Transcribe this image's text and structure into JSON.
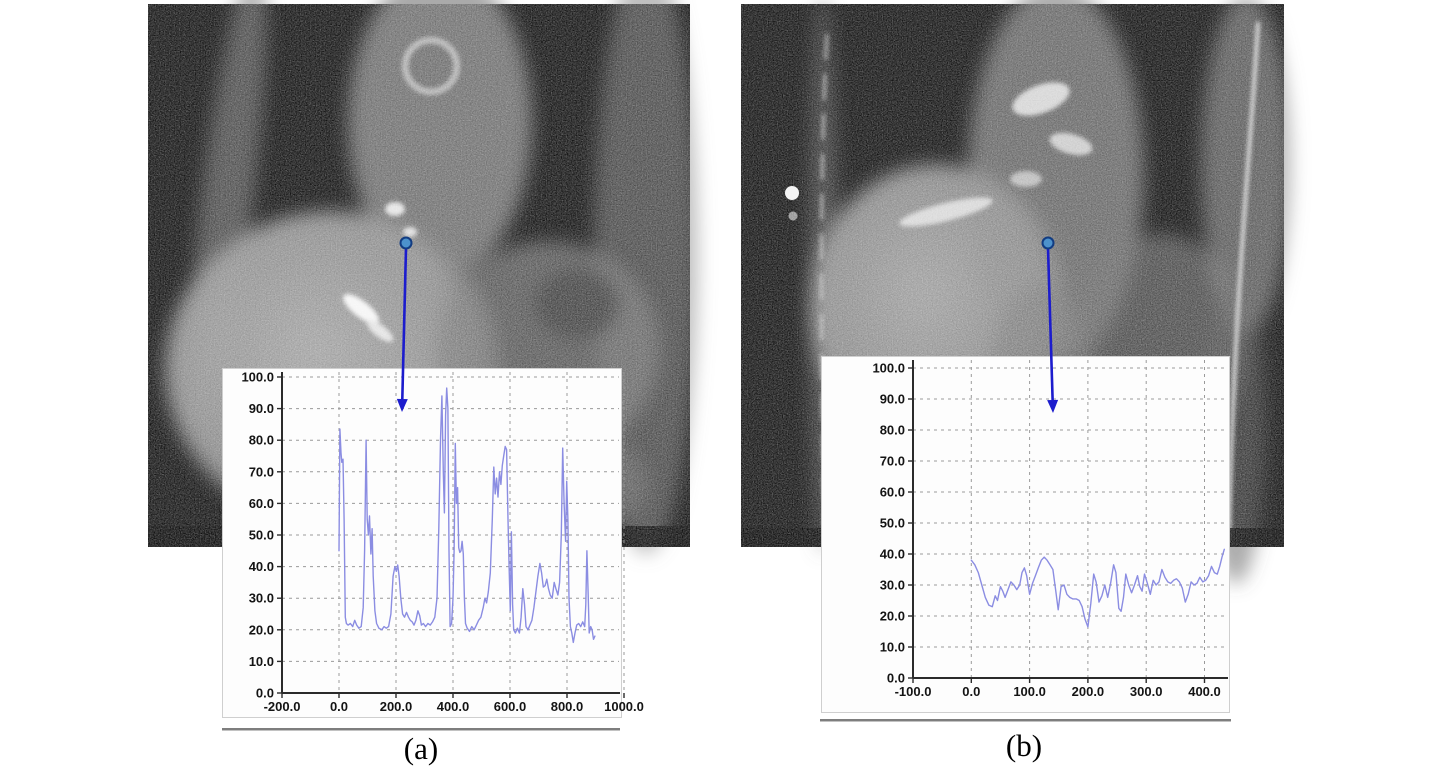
{
  "figure": {
    "panels": [
      {
        "caption": "(a)",
        "image": {
          "name": "coronal-mri-slice",
          "description": "grainy coronal thoraco-abdominal MRI"
        },
        "marker": {
          "dot": [
            406,
            243
          ],
          "arrow_tip": [
            402,
            412
          ]
        }
      },
      {
        "caption": "(b)",
        "image": {
          "name": "coronal-mri-slice",
          "description": "grainy coronal thoraco-abdominal MRI"
        },
        "marker": {
          "dot": [
            1048,
            243
          ],
          "arrow_tip": [
            1053,
            413
          ]
        }
      }
    ],
    "colors": {
      "curve": "#8b8de2",
      "grid": "#9a9a9a",
      "axis": "#2b2b2b",
      "arrow": "#1c1ccd",
      "dot_fill": "#4d92cc",
      "dot_stroke": "#123c82",
      "chart_bg": "#fdfdfd",
      "underline": "#7e7e7e"
    }
  },
  "chart_data": [
    {
      "type": "line",
      "title": "",
      "xlabel": "",
      "ylabel": "",
      "xlim": [
        -200,
        986
      ],
      "ylim": [
        0,
        100
      ],
      "grid": true,
      "legend": "none",
      "x_ticks": [
        -200,
        0,
        200,
        400,
        600,
        800,
        1000
      ],
      "x_tick_labels": [
        "-200.0",
        "0.0",
        "200.0",
        "400.0",
        "600.0",
        "800.0",
        "1000.0"
      ],
      "y_ticks": [
        0,
        10,
        20,
        30,
        40,
        50,
        60,
        70,
        80,
        90,
        100
      ],
      "y_tick_labels": [
        "0.0",
        "10.0",
        "20.0",
        "30.0",
        "40.0",
        "50.0",
        "60.0",
        "70.0",
        "80.0",
        "90.0",
        "100.0"
      ],
      "points": [
        [
          0,
          45
        ],
        [
          3,
          83.5
        ],
        [
          7,
          76
        ],
        [
          10,
          73
        ],
        [
          14,
          74
        ],
        [
          18,
          55
        ],
        [
          22,
          24
        ],
        [
          26,
          22
        ],
        [
          32,
          21.5
        ],
        [
          40,
          22
        ],
        [
          48,
          21
        ],
        [
          55,
          23
        ],
        [
          62,
          21.5
        ],
        [
          70,
          20.5
        ],
        [
          78,
          21
        ],
        [
          85,
          27
        ],
        [
          90,
          45
        ],
        [
          95,
          80
        ],
        [
          99,
          55
        ],
        [
          103,
          50
        ],
        [
          107,
          56
        ],
        [
          112,
          44
        ],
        [
          116,
          52
        ],
        [
          120,
          37
        ],
        [
          126,
          26
        ],
        [
          132,
          22
        ],
        [
          140,
          20.5
        ],
        [
          150,
          20
        ],
        [
          158,
          21
        ],
        [
          166,
          20.5
        ],
        [
          174,
          21
        ],
        [
          182,
          25
        ],
        [
          190,
          37
        ],
        [
          196,
          40
        ],
        [
          201,
          38.5
        ],
        [
          206,
          40.5
        ],
        [
          211,
          37
        ],
        [
          217,
          30
        ],
        [
          223,
          25
        ],
        [
          230,
          24
        ],
        [
          237,
          25.5
        ],
        [
          244,
          24
        ],
        [
          250,
          23
        ],
        [
          257,
          22.5
        ],
        [
          263,
          21.5
        ],
        [
          270,
          23
        ],
        [
          277,
          26
        ],
        [
          283,
          24.5
        ],
        [
          289,
          21.5
        ],
        [
          296,
          22
        ],
        [
          304,
          21
        ],
        [
          312,
          22
        ],
        [
          320,
          21.5
        ],
        [
          328,
          22.5
        ],
        [
          336,
          24
        ],
        [
          344,
          30
        ],
        [
          350,
          52
        ],
        [
          356,
          80
        ],
        [
          361,
          94
        ],
        [
          366,
          70
        ],
        [
          370,
          57
        ],
        [
          374,
          88
        ],
        [
          378,
          96.5
        ],
        [
          382,
          90
        ],
        [
          386,
          45
        ],
        [
          390,
          21
        ],
        [
          395,
          22
        ],
        [
          400,
          30
        ],
        [
          404,
          45
        ],
        [
          408,
          79
        ],
        [
          412,
          60
        ],
        [
          416,
          65
        ],
        [
          420,
          46
        ],
        [
          424,
          44.5
        ],
        [
          428,
          45
        ],
        [
          432,
          48
        ],
        [
          436,
          44
        ],
        [
          440,
          30
        ],
        [
          444,
          22
        ],
        [
          450,
          20.5
        ],
        [
          458,
          19.5
        ],
        [
          466,
          21
        ],
        [
          474,
          20
        ],
        [
          482,
          21.5
        ],
        [
          490,
          23
        ],
        [
          498,
          24
        ],
        [
          506,
          27
        ],
        [
          512,
          30
        ],
        [
          518,
          28.5
        ],
        [
          524,
          32
        ],
        [
          531,
          38
        ],
        [
          538,
          55
        ],
        [
          543,
          71.5
        ],
        [
          548,
          63
        ],
        [
          553,
          68
        ],
        [
          558,
          62
        ],
        [
          563,
          70
        ],
        [
          568,
          66
        ],
        [
          573,
          72
        ],
        [
          578,
          75
        ],
        [
          583,
          78
        ],
        [
          588,
          77
        ],
        [
          593,
          55
        ],
        [
          597,
          40
        ],
        [
          601,
          26
        ],
        [
          605,
          51
        ],
        [
          609,
          28
        ],
        [
          613,
          20
        ],
        [
          619,
          19
        ],
        [
          626,
          20.5
        ],
        [
          633,
          19
        ],
        [
          639,
          24
        ],
        [
          645,
          33
        ],
        [
          651,
          28
        ],
        [
          656,
          21
        ],
        [
          663,
          20
        ],
        [
          670,
          21.5
        ],
        [
          677,
          23
        ],
        [
          684,
          27
        ],
        [
          691,
          32
        ],
        [
          698,
          37
        ],
        [
          705,
          41
        ],
        [
          711,
          38
        ],
        [
          717,
          33.5
        ],
        [
          723,
          34
        ],
        [
          729,
          36
        ],
        [
          735,
          33
        ],
        [
          741,
          31
        ],
        [
          748,
          30
        ],
        [
          755,
          35
        ],
        [
          761,
          33
        ],
        [
          768,
          31
        ],
        [
          774,
          35
        ],
        [
          780,
          50
        ],
        [
          785,
          77.5
        ],
        [
          790,
          60
        ],
        [
          795,
          48
        ],
        [
          799,
          67
        ],
        [
          803,
          55
        ],
        [
          807,
          30
        ],
        [
          812,
          21
        ],
        [
          817,
          19
        ],
        [
          822,
          16
        ],
        [
          828,
          19
        ],
        [
          834,
          21.5
        ],
        [
          841,
          22
        ],
        [
          848,
          21
        ],
        [
          855,
          22.5
        ],
        [
          862,
          21
        ],
        [
          866,
          28
        ],
        [
          870,
          45
        ],
        [
          874,
          32
        ],
        [
          878,
          19
        ],
        [
          883,
          21
        ],
        [
          888,
          20
        ],
        [
          893,
          17
        ],
        [
          898,
          18
        ]
      ]
    },
    {
      "type": "line",
      "title": "",
      "xlabel": "",
      "ylabel": "",
      "xlim": [
        -100,
        438
      ],
      "ylim": [
        0,
        100
      ],
      "grid": true,
      "legend": "none",
      "x_ticks": [
        -100,
        0,
        100,
        200,
        300,
        400
      ],
      "x_tick_labels": [
        "-100.0",
        "0.0",
        "100.0",
        "200.0",
        "300.0",
        "400.0"
      ],
      "y_ticks": [
        0,
        10,
        20,
        30,
        40,
        50,
        60,
        70,
        80,
        90,
        100
      ],
      "y_tick_labels": [
        "0.0",
        "10.0",
        "20.0",
        "30.0",
        "40.0",
        "50.0",
        "60.0",
        "70.0",
        "80.0",
        "90.0",
        "100.0"
      ],
      "points": [
        [
          0,
          38
        ],
        [
          6,
          36.5
        ],
        [
          12,
          34
        ],
        [
          18,
          30
        ],
        [
          24,
          26
        ],
        [
          30,
          23.5
        ],
        [
          36,
          23
        ],
        [
          41,
          26.5
        ],
        [
          45,
          25
        ],
        [
          50,
          29.5
        ],
        [
          54,
          28
        ],
        [
          58,
          26
        ],
        [
          63,
          28.5
        ],
        [
          68,
          31
        ],
        [
          73,
          30
        ],
        [
          78,
          28.5
        ],
        [
          83,
          30
        ],
        [
          87,
          34
        ],
        [
          91,
          35.5
        ],
        [
          95,
          33
        ],
        [
          100,
          27
        ],
        [
          105,
          30.5
        ],
        [
          110,
          33
        ],
        [
          115,
          35.5
        ],
        [
          120,
          38
        ],
        [
          125,
          39
        ],
        [
          130,
          38
        ],
        [
          135,
          36.5
        ],
        [
          140,
          35
        ],
        [
          145,
          28
        ],
        [
          149,
          22
        ],
        [
          154,
          29.5
        ],
        [
          159,
          30
        ],
        [
          164,
          27
        ],
        [
          169,
          26
        ],
        [
          174,
          25.5
        ],
        [
          180,
          25.5
        ],
        [
          185,
          25
        ],
        [
          190,
          23
        ],
        [
          195,
          19
        ],
        [
          200,
          16.5
        ],
        [
          205,
          24
        ],
        [
          210,
          33.5
        ],
        [
          214,
          31
        ],
        [
          219,
          24.5
        ],
        [
          224,
          26.5
        ],
        [
          229,
          30
        ],
        [
          234,
          26
        ],
        [
          239,
          30.5
        ],
        [
          244,
          36.5
        ],
        [
          248,
          34
        ],
        [
          253,
          22.5
        ],
        [
          257,
          21.5
        ],
        [
          261,
          26
        ],
        [
          265,
          33.5
        ],
        [
          270,
          30
        ],
        [
          275,
          27.5
        ],
        [
          280,
          30
        ],
        [
          285,
          33
        ],
        [
          289,
          29.5
        ],
        [
          293,
          28
        ],
        [
          297,
          33.5
        ],
        [
          302,
          30.5
        ],
        [
          307,
          27
        ],
        [
          312,
          31.5
        ],
        [
          317,
          30
        ],
        [
          322,
          31
        ],
        [
          327,
          35
        ],
        [
          332,
          32.5
        ],
        [
          337,
          31
        ],
        [
          342,
          30.5
        ],
        [
          347,
          31.5
        ],
        [
          352,
          32
        ],
        [
          357,
          31
        ],
        [
          362,
          29
        ],
        [
          367,
          24.5
        ],
        [
          372,
          27
        ],
        [
          377,
          31
        ],
        [
          382,
          30
        ],
        [
          387,
          30.5
        ],
        [
          392,
          32.5
        ],
        [
          397,
          31
        ],
        [
          402,
          31.5
        ],
        [
          407,
          33
        ],
        [
          412,
          36
        ],
        [
          417,
          34
        ],
        [
          422,
          33.5
        ],
        [
          426,
          36
        ],
        [
          430,
          39
        ],
        [
          434,
          41.5
        ]
      ]
    }
  ]
}
